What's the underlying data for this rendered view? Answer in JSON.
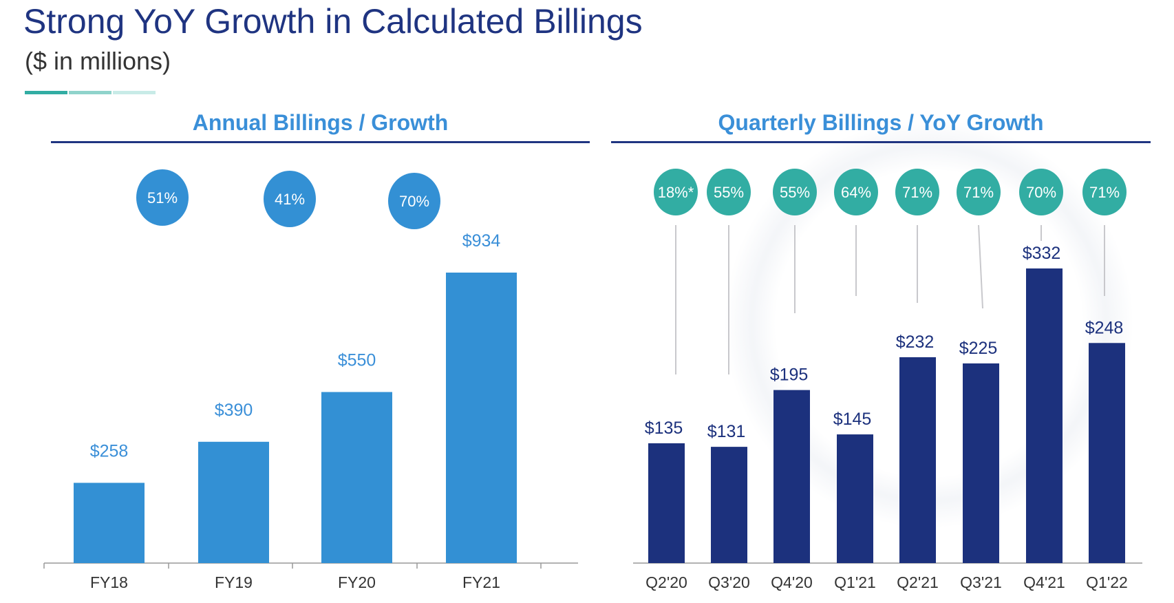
{
  "title": "Strong YoY Growth in Calculated Billings",
  "subtitle": "($ in millions)",
  "colors": {
    "title": "#1f3481",
    "annual_bar": "#3390d4",
    "quarterly_bar": "#1c317d",
    "annual_circle": "#3390d4",
    "quarterly_circle": "#32ada3",
    "header": "#3a8fd8",
    "accent_dashes": [
      "#32ada3",
      "#8fd3cb",
      "#c8ebe7"
    ]
  },
  "chart_data": [
    {
      "type": "bar",
      "title": "Annual Billings / Growth",
      "categories": [
        "FY18",
        "FY19",
        "FY20",
        "FY21"
      ],
      "values": [
        258,
        390,
        550,
        934
      ],
      "value_labels": [
        "$258",
        "$390",
        "$550",
        "$934"
      ],
      "growth_labels": [
        "51%",
        "41%",
        "70%"
      ],
      "growth_for_categories": [
        "FY19",
        "FY20",
        "FY21"
      ],
      "ylim": [
        0,
        934
      ]
    },
    {
      "type": "bar",
      "title": "Quarterly Billings / YoY Growth",
      "categories": [
        "Q2'20",
        "Q3'20",
        "Q4'20",
        "Q1'21",
        "Q2'21",
        "Q3'21",
        "Q4'21",
        "Q1'22"
      ],
      "values": [
        135,
        131,
        195,
        145,
        232,
        225,
        332,
        248
      ],
      "value_labels": [
        "$135",
        "$131",
        "$195",
        "$145",
        "$232",
        "$225",
        "$332",
        "$248"
      ],
      "growth_labels": [
        "18%*",
        "55%",
        "55%",
        "64%",
        "71%",
        "71%",
        "70%",
        "71%"
      ],
      "ylim": [
        0,
        332
      ]
    }
  ]
}
